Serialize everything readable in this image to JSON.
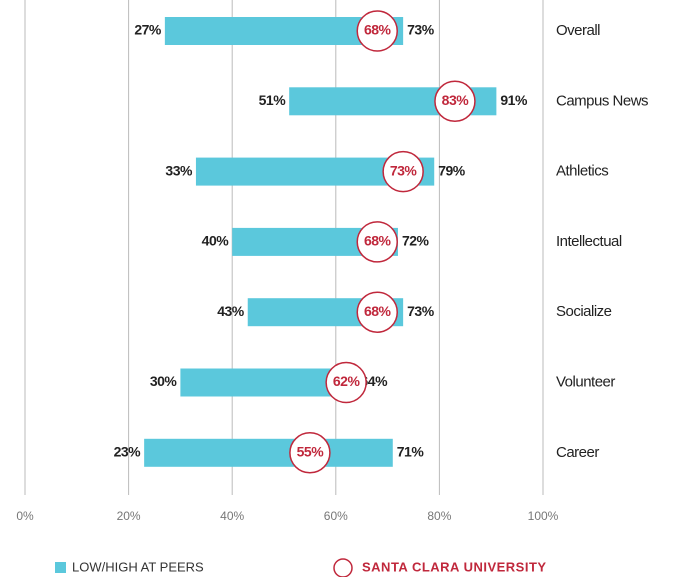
{
  "chart_data": {
    "type": "range-bar",
    "categories": [
      "Overall",
      "Campus News",
      "Athletics",
      "Intellectual",
      "Socialize",
      "Volunteer",
      "Career"
    ],
    "series": [
      {
        "name": "LOW/HIGH AT PEERS",
        "color": "#5bc8dc",
        "low": [
          27,
          51,
          33,
          40,
          43,
          30,
          23
        ],
        "low_labels": [
          "27%",
          "51%",
          "33%",
          "40%",
          "43%",
          "30%",
          "23%"
        ],
        "high": [
          73,
          91,
          79,
          72,
          73,
          64,
          71
        ],
        "high_labels": [
          "73%",
          "91%",
          "79%",
          "72%",
          "73%",
          "64%",
          "71%"
        ]
      },
      {
        "name": "SANTA CLARA UNIVERSITY",
        "color": "#c0283c",
        "values": [
          68,
          83,
          73,
          68,
          68,
          62,
          55
        ],
        "value_labels": [
          "68%",
          "83%",
          "73%",
          "68%",
          "68%",
          "62%",
          "55%"
        ]
      }
    ],
    "xlim": [
      0,
      100
    ],
    "xticks": [
      {
        "value": 0,
        "label": "0%"
      },
      {
        "value": 20,
        "label": "20%"
      },
      {
        "value": 40,
        "label": "40%"
      },
      {
        "value": 60,
        "label": "60%"
      },
      {
        "value": 80,
        "label": "80%"
      },
      {
        "value": 100,
        "label": "100%"
      }
    ],
    "grid": true
  }
}
